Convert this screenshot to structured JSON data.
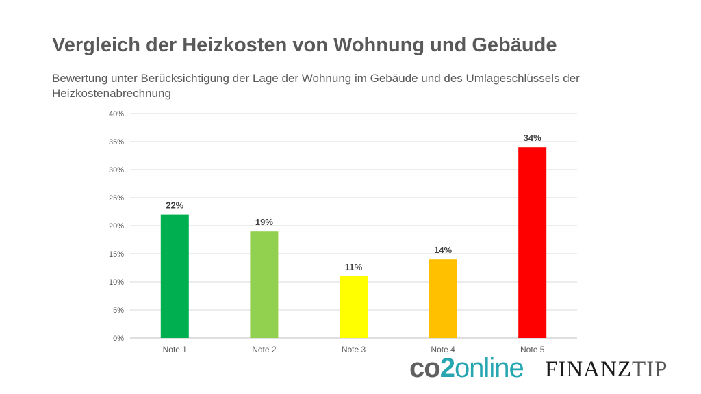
{
  "header": {
    "title": "Vergleich der Heizkosten von Wohnung und Gebäude",
    "subtitle": "Bewertung unter Berücksichtigung der Lage der Wohnung im Gebäude und des Umlageschlüssels der Heizkostenabrechnung"
  },
  "logos": {
    "co2online": {
      "part1": "co",
      "part2": "2",
      "part3": "online"
    },
    "finanztip": {
      "part1": "FINANZ",
      "part2": "TIP"
    }
  },
  "chart_data": {
    "type": "bar",
    "title": "Vergleich der Heizkosten von Wohnung und Gebäude",
    "subtitle": "Bewertung unter Berücksichtigung der Lage der Wohnung im Gebäude und des Umlageschlüssels der Heizkostenabrechnung",
    "categories": [
      "Note 1",
      "Note 2",
      "Note 3",
      "Note 4",
      "Note 5"
    ],
    "values": [
      22,
      19,
      11,
      14,
      34
    ],
    "data_labels": [
      "22%",
      "19%",
      "11%",
      "14%",
      "34%"
    ],
    "bar_colors": [
      "#00b050",
      "#92d050",
      "#ffff00",
      "#ffc000",
      "#ff0000"
    ],
    "xlabel": "",
    "ylabel": "",
    "ylim": [
      0,
      40
    ],
    "yticks": [
      0,
      5,
      10,
      15,
      20,
      25,
      30,
      35,
      40
    ],
    "ytick_labels": [
      "0%",
      "5%",
      "10%",
      "15%",
      "20%",
      "25%",
      "30%",
      "35%",
      "40%"
    ],
    "grid": true,
    "legend": "none"
  }
}
